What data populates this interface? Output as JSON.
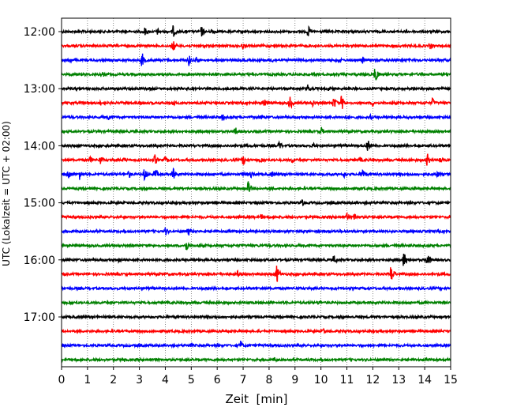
{
  "chart_data": {
    "type": "line",
    "title": "",
    "xlabel": "Zeit  [min]",
    "ylabel": "UTC (Lokalzeit = UTC + 02:00)",
    "xlim": [
      0,
      15
    ],
    "x_ticks": [
      "0",
      "1",
      "2",
      "3",
      "4",
      "5",
      "6",
      "7",
      "8",
      "9",
      "10",
      "11",
      "12",
      "13",
      "14",
      "15"
    ],
    "y_ticks": [
      "12:00",
      "13:00",
      "14:00",
      "15:00",
      "16:00",
      "17:00"
    ],
    "grid": "vertical dotted lines at each minute",
    "trace_interval_min": 15,
    "colors": [
      "#000000",
      "#ff0000",
      "#0000ff",
      "#008000"
    ],
    "traces": [
      {
        "start": "12:00",
        "color": "#000000",
        "events": [
          [
            3.2,
            0.45
          ],
          [
            3.7,
            0.35
          ],
          [
            4.3,
            0.6
          ],
          [
            5.4,
            0.55
          ],
          [
            5.8,
            0.4
          ],
          [
            9.5,
            0.6
          ]
        ]
      },
      {
        "start": "12:15",
        "color": "#ff0000",
        "events": [
          [
            4.3,
            0.6
          ],
          [
            7.0,
            0.3
          ],
          [
            9.8,
            0.3
          ],
          [
            14.2,
            0.35
          ]
        ]
      },
      {
        "start": "12:30",
        "color": "#0000ff",
        "events": [
          [
            0.3,
            0.35
          ],
          [
            3.1,
            0.75
          ],
          [
            4.9,
            0.6
          ],
          [
            5.2,
            0.4
          ],
          [
            8.1,
            0.35
          ],
          [
            10.7,
            0.3
          ],
          [
            11.6,
            0.4
          ]
        ]
      },
      {
        "start": "12:45",
        "color": "#008000",
        "events": [
          [
            1.6,
            0.25
          ],
          [
            12.1,
            0.85
          ]
        ]
      },
      {
        "start": "13:00",
        "color": "#000000",
        "events": [
          [
            9.5,
            0.45
          ],
          [
            10.3,
            0.3
          ]
        ]
      },
      {
        "start": "13:15",
        "color": "#ff0000",
        "events": [
          [
            1.5,
            0.3
          ],
          [
            3.0,
            0.3
          ],
          [
            4.3,
            0.35
          ],
          [
            7.8,
            0.45
          ],
          [
            8.8,
            0.7
          ],
          [
            9.7,
            0.4
          ],
          [
            10.5,
            0.65
          ],
          [
            10.8,
            0.8
          ],
          [
            12.0,
            0.35
          ],
          [
            14.3,
            0.5
          ]
        ]
      },
      {
        "start": "13:30",
        "color": "#0000ff",
        "events": [
          [
            1.8,
            0.3
          ],
          [
            6.2,
            0.4
          ],
          [
            7.7,
            0.35
          ],
          [
            11.0,
            0.35
          ],
          [
            11.9,
            0.3
          ]
        ]
      },
      {
        "start": "13:45",
        "color": "#008000",
        "events": [
          [
            6.7,
            0.45
          ],
          [
            10.0,
            0.45
          ]
        ]
      },
      {
        "start": "14:00",
        "color": "#000000",
        "events": [
          [
            8.4,
            0.45
          ],
          [
            9.7,
            0.3
          ],
          [
            11.8,
            0.65
          ]
        ]
      },
      {
        "start": "14:15",
        "color": "#ff0000",
        "events": [
          [
            1.1,
            0.4
          ],
          [
            1.5,
            0.45
          ],
          [
            2.4,
            0.3
          ],
          [
            3.6,
            0.55
          ],
          [
            4.0,
            0.4
          ],
          [
            7.0,
            0.55
          ],
          [
            7.7,
            0.35
          ],
          [
            8.9,
            0.35
          ],
          [
            11.5,
            0.35
          ],
          [
            14.1,
            0.65
          ],
          [
            14.6,
            0.45
          ]
        ]
      },
      {
        "start": "14:30",
        "color": "#0000ff",
        "events": [
          [
            0.25,
            0.65
          ],
          [
            0.7,
            0.55
          ],
          [
            2.6,
            0.4
          ],
          [
            3.2,
            0.65
          ],
          [
            3.6,
            0.6
          ],
          [
            4.3,
            0.6
          ],
          [
            7.0,
            0.35
          ],
          [
            7.3,
            0.4
          ],
          [
            8.1,
            0.35
          ],
          [
            10.9,
            0.35
          ],
          [
            11.6,
            0.65
          ],
          [
            14.5,
            0.35
          ]
        ]
      },
      {
        "start": "14:45",
        "color": "#008000",
        "events": [
          [
            7.2,
            0.7
          ],
          [
            13.6,
            0.25
          ]
        ]
      },
      {
        "start": "15:00",
        "color": "#000000",
        "events": [
          [
            9.3,
            0.35
          ]
        ]
      },
      {
        "start": "15:15",
        "color": "#ff0000",
        "events": [
          [
            7.7,
            0.3
          ],
          [
            11.0,
            0.4
          ],
          [
            11.3,
            0.45
          ]
        ]
      },
      {
        "start": "15:30",
        "color": "#0000ff",
        "events": [
          [
            4.0,
            0.45
          ],
          [
            4.9,
            0.45
          ]
        ]
      },
      {
        "start": "15:45",
        "color": "#008000",
        "events": [
          [
            4.8,
            0.6
          ]
        ]
      },
      {
        "start": "16:00",
        "color": "#000000",
        "events": [
          [
            2.2,
            0.35
          ],
          [
            3.8,
            0.3
          ],
          [
            10.5,
            0.5
          ],
          [
            13.2,
            0.85
          ],
          [
            14.1,
            0.75
          ]
        ]
      },
      {
        "start": "16:15",
        "color": "#ff0000",
        "events": [
          [
            6.8,
            0.4
          ],
          [
            8.3,
            0.9
          ],
          [
            12.7,
            0.9
          ]
        ]
      },
      {
        "start": "16:30",
        "color": "#0000ff",
        "events": []
      },
      {
        "start": "16:45",
        "color": "#008000",
        "events": [
          [
            9.9,
            0.3
          ]
        ]
      },
      {
        "start": "17:00",
        "color": "#000000",
        "events": [
          [
            4.4,
            0.2
          ]
        ]
      },
      {
        "start": "17:15",
        "color": "#ff0000",
        "events": [
          [
            10.1,
            0.35
          ]
        ]
      },
      {
        "start": "17:30",
        "color": "#0000ff",
        "events": [
          [
            5.0,
            0.25
          ],
          [
            6.9,
            0.45
          ],
          [
            9.3,
            0.25
          ]
        ]
      },
      {
        "start": "17:45",
        "color": "#008000",
        "events": [
          [
            2.4,
            0.25
          ],
          [
            8.2,
            0.3
          ]
        ]
      }
    ]
  }
}
